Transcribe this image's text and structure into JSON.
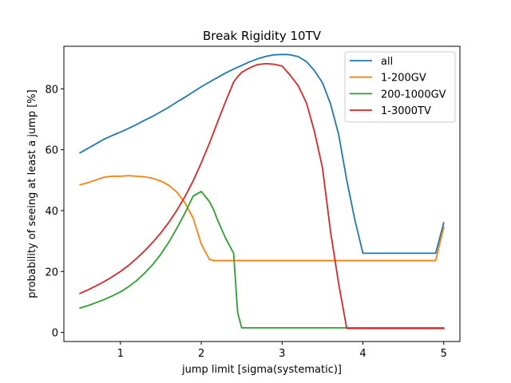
{
  "chart_data": {
    "type": "line",
    "title": "Break Rigidity 10TV",
    "xlabel": "jump limit [sigma(systematic)]",
    "ylabel": "probability of seeing at least a jump [%]",
    "xlim": [
      0.3,
      5.2
    ],
    "ylim": [
      -3,
      94
    ],
    "xticks": [
      1,
      2,
      3,
      4,
      5
    ],
    "yticks": [
      0,
      20,
      40,
      60,
      80
    ],
    "xtick_labels": [
      "1",
      "2",
      "3",
      "4",
      "5"
    ],
    "ytick_labels": [
      "0",
      "20",
      "40",
      "60",
      "80"
    ],
    "grid": false,
    "legend_position": "top-right",
    "x": [
      0.5,
      0.6,
      0.7,
      0.8,
      0.9,
      1.0,
      1.1,
      1.2,
      1.3,
      1.4,
      1.5,
      1.6,
      1.7,
      1.8,
      1.9,
      2.0,
      2.1,
      2.15,
      2.2,
      2.3,
      2.4,
      2.45,
      2.5,
      2.55,
      2.6,
      2.65,
      2.7,
      2.8,
      2.9,
      3.0,
      3.05,
      3.1,
      3.2,
      3.3,
      3.4,
      3.5,
      3.6,
      3.7,
      3.8,
      3.9,
      4.0,
      4.9,
      5.0
    ],
    "series": [
      {
        "name": "all",
        "color": "#1f77b4",
        "values": [
          59,
          60.5,
          62,
          63.5,
          64.7,
          65.8,
          67,
          68.3,
          69.7,
          71,
          72.5,
          74,
          75.7,
          77.3,
          79,
          80.7,
          82.2,
          83,
          83.7,
          85.2,
          86.5,
          87.1,
          87.7,
          88.3,
          88.9,
          89.4,
          89.9,
          90.7,
          91.2,
          91.3,
          91.3,
          91.2,
          90.6,
          89,
          86,
          82,
          75,
          65,
          50,
          37,
          26,
          26,
          36
        ]
      },
      {
        "name": "1-200GV",
        "color": "#ff7f0e",
        "values": [
          48.5,
          49.2,
          50.1,
          51,
          51.3,
          51.3,
          51.5,
          51.3,
          51.1,
          50.6,
          49.7,
          48.3,
          46,
          42.5,
          37.5,
          29,
          24,
          23.6,
          23.6,
          23.6,
          23.6,
          23.6,
          23.6,
          23.6,
          23.6,
          23.6,
          23.6,
          23.6,
          23.6,
          23.6,
          23.6,
          23.6,
          23.6,
          23.6,
          23.6,
          23.6,
          23.6,
          23.6,
          23.6,
          23.6,
          23.6,
          23.6,
          34.5
        ]
      },
      {
        "name": "200-1000GV",
        "color": "#2ca02c",
        "values": [
          8,
          8.8,
          9.8,
          10.8,
          12,
          13.3,
          15,
          17,
          19.5,
          22.3,
          25.7,
          29.7,
          34.3,
          39.3,
          44.8,
          46.3,
          43,
          40.5,
          37,
          31,
          26,
          6.5,
          1.5,
          1.5,
          1.5,
          1.5,
          1.5,
          1.5,
          1.5,
          1.5,
          1.5,
          1.5,
          1.5,
          1.5,
          1.5,
          1.5,
          1.5,
          1.5,
          1.5,
          1.5,
          1.5,
          1.5,
          1.5
        ]
      },
      {
        "name": "1-3000TV",
        "color": "#d62728",
        "values": [
          12.8,
          14,
          15.3,
          16.7,
          18.3,
          20,
          22,
          24.3,
          26.8,
          29.6,
          32.7,
          36.2,
          40.2,
          44.7,
          49.8,
          55.7,
          62.1,
          65.5,
          69,
          75.8,
          82.2,
          84,
          85.4,
          86.2,
          86.9,
          87.5,
          88,
          88.3,
          88.1,
          87.5,
          86,
          84.5,
          81,
          75.5,
          66,
          54,
          33,
          16,
          1.3,
          1.3,
          1.3,
          1.3,
          1.3
        ]
      }
    ]
  }
}
